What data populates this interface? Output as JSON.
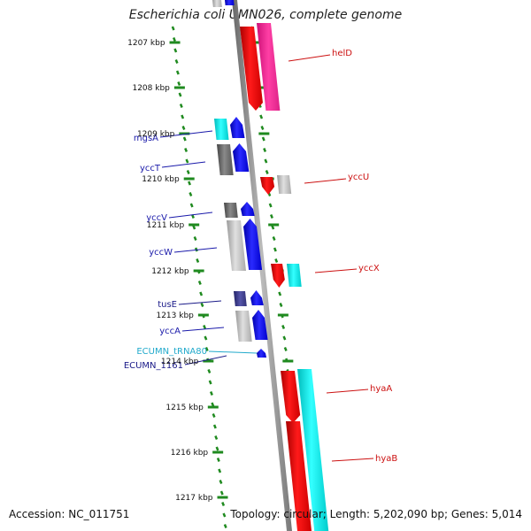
{
  "title": "Escherichia coli UMN026, complete genome",
  "accession": "Accession: NC_011751",
  "summary": "Topology: circular; Length: 5,202,090 bp; Genes: 5,014",
  "colors": {
    "ticks": "#1f8a1f",
    "backbone": "#808080",
    "label_forward": "#1a1aaa",
    "label_reverse": "#cc1111",
    "label_trna": "#22aacc",
    "label_misc": "#1a1a88"
  },
  "tick_labels": [
    "1207 kbp",
    "1208 kbp",
    "1209 kbp",
    "1210 kbp",
    "1211 kbp",
    "1212 kbp",
    "1213 kbp",
    "1214 kbp",
    "1215 kbp",
    "1216 kbp",
    "1217 kbp"
  ],
  "genes_left": [
    {
      "name": "mgsA",
      "color": "#1a1aaa"
    },
    {
      "name": "yccT",
      "color": "#1a1aaa"
    },
    {
      "name": "yccV",
      "color": "#1a1aaa"
    },
    {
      "name": "yccW",
      "color": "#1a1aaa"
    },
    {
      "name": "tusE",
      "color": "#1a1a88"
    },
    {
      "name": "yccA",
      "color": "#1a1aaa"
    },
    {
      "name": "ECUMN_tRNA80",
      "color": "#22aacc"
    },
    {
      "name": "ECUMN_1161",
      "color": "#1a1a88"
    }
  ],
  "genes_right": [
    {
      "name": "helD",
      "color": "#cc1111"
    },
    {
      "name": "yccU",
      "color": "#cc1111"
    },
    {
      "name": "yccX",
      "color": "#cc1111"
    },
    {
      "name": "hyaA",
      "color": "#cc1111"
    },
    {
      "name": "hyaB",
      "color": "#cc1111"
    }
  ]
}
